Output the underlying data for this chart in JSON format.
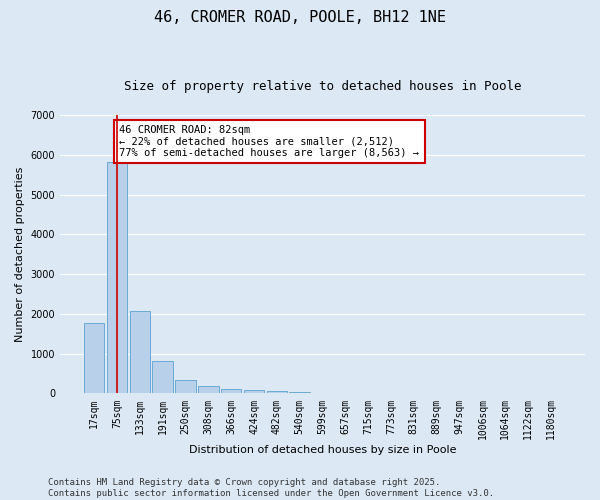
{
  "title": "46, CROMER ROAD, POOLE, BH12 1NE",
  "subtitle": "Size of property relative to detached houses in Poole",
  "xlabel": "Distribution of detached houses by size in Poole",
  "ylabel": "Number of detached properties",
  "categories": [
    "17sqm",
    "75sqm",
    "133sqm",
    "191sqm",
    "250sqm",
    "308sqm",
    "366sqm",
    "424sqm",
    "482sqm",
    "540sqm",
    "599sqm",
    "657sqm",
    "715sqm",
    "773sqm",
    "831sqm",
    "889sqm",
    "947sqm",
    "1006sqm",
    "1064sqm",
    "1122sqm",
    "1180sqm"
  ],
  "values": [
    1780,
    5820,
    2080,
    820,
    340,
    185,
    105,
    95,
    60,
    35,
    0,
    0,
    0,
    0,
    0,
    0,
    0,
    0,
    0,
    0,
    0
  ],
  "bar_color": "#b8d0ea",
  "bar_edge_color": "#6aaad4",
  "ylim": [
    0,
    7000
  ],
  "yticks": [
    0,
    1000,
    2000,
    3000,
    4000,
    5000,
    6000,
    7000
  ],
  "property_line_x": 1,
  "property_line_color": "#cc0000",
  "annotation_text": "46 CROMER ROAD: 82sqm\n← 22% of detached houses are smaller (2,512)\n77% of semi-detached houses are larger (8,563) →",
  "annotation_box_color": "#cc0000",
  "annotation_bg": "#ffffff",
  "footer_line1": "Contains HM Land Registry data © Crown copyright and database right 2025.",
  "footer_line2": "Contains public sector information licensed under the Open Government Licence v3.0.",
  "plot_bg_color": "#dce9f5",
  "fig_bg_color": "#dce9f5",
  "grid_color": "#ffffff",
  "title_fontsize": 11,
  "subtitle_fontsize": 9,
  "axis_label_fontsize": 8,
  "tick_fontsize": 7,
  "annotation_fontsize": 7.5,
  "footer_fontsize": 6.5
}
